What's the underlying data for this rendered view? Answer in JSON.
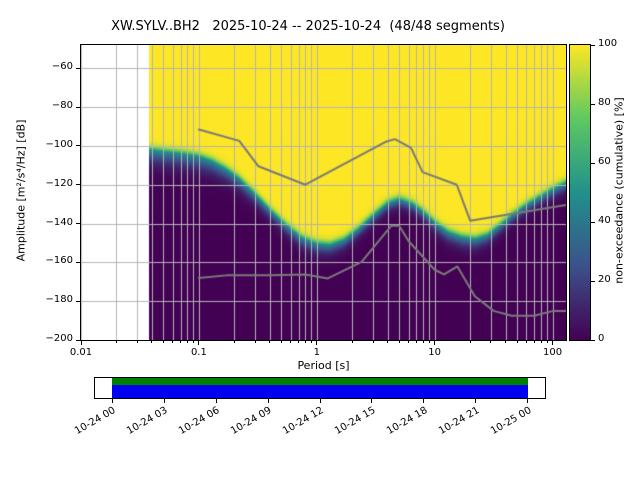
{
  "chart_data": {
    "type": "heatmap",
    "title": "XW.SYLV..BH2   2025-10-24 -- 2025-10-24  (48/48 segments)",
    "xlabel": "Period [s]",
    "ylabel": "Amplitude [m²/s⁴/Hz] [dB]",
    "colorbar_label": "non-exceedance (cumulative) [%]",
    "x_scale": "log",
    "xlim": [
      0.01,
      130
    ],
    "ylim": [
      -200,
      -48
    ],
    "x_ticks": [
      0.01,
      0.1,
      1,
      10,
      100
    ],
    "x_tick_labels": [
      "0.01",
      "0.1",
      "1",
      "10",
      "100"
    ],
    "y_ticks": [
      -60,
      -80,
      -100,
      -120,
      -140,
      -160,
      -180,
      -200
    ],
    "y_tick_labels": [
      "−60",
      "−80",
      "−100",
      "−120",
      "−140",
      "−160",
      "−180",
      "−200"
    ],
    "colorbar_ticks": [
      0,
      20,
      40,
      60,
      80,
      100
    ],
    "colorbar_tick_labels": [
      "0",
      "20",
      "40",
      "60",
      "80",
      "100"
    ],
    "colormap": "viridis",
    "colormap_stops": [
      "#440154",
      "#3b528b",
      "#21918c",
      "#5ec962",
      "#fde725"
    ],
    "grid": true,
    "grid_color": "#b4b4b4",
    "period_range": [
      0.038,
      130
    ],
    "cumulative_boundary": {
      "periods": [
        0.038,
        0.05,
        0.07,
        0.1,
        0.13,
        0.17,
        0.22,
        0.3,
        0.4,
        0.55,
        0.75,
        1.0,
        1.3,
        1.7,
        2.2,
        3.0,
        4.0,
        5.0,
        6.5,
        8.0,
        10,
        13,
        17,
        22,
        28,
        35,
        45,
        60,
        80,
        100,
        130
      ],
      "db": [
        -102,
        -103,
        -104,
        -105.5,
        -108,
        -112,
        -117,
        -125,
        -133,
        -141,
        -147.5,
        -150.5,
        -151,
        -148.5,
        -143.5,
        -136,
        -129.5,
        -127.5,
        -130,
        -134,
        -139.5,
        -144.5,
        -147,
        -148,
        -146,
        -141.5,
        -136,
        -130.5,
        -126,
        -122.5,
        -119
      ],
      "spread_db": [
        3.5,
        3.5,
        3.5,
        3.5,
        3.2,
        3.0,
        2.8,
        2.5,
        2.2,
        2.2,
        2.5,
        2.5,
        2.4,
        2.2,
        2.0,
        2.0,
        2.0,
        2.0,
        2.0,
        2.0,
        2.3,
        2.5,
        2.5,
        2.5,
        2.3,
        2.0,
        2.0,
        2.0,
        2.0,
        2.2,
        2.2
      ],
      "upper_sharpness_db": 1.2
    },
    "noise_models": {
      "color": "#7a7a7a",
      "nhnm": {
        "periods": [
          0.1,
          0.22,
          0.32,
          0.8,
          3.8,
          4.6,
          6.3,
          7.9,
          15.4,
          20,
          130
        ],
        "db": [
          -91.5,
          -97.4,
          -110.5,
          -120.0,
          -98.0,
          -96.5,
          -101.0,
          -113.5,
          -120.0,
          -138.5,
          -130.4
        ]
      },
      "nlnm": {
        "periods": [
          0.1,
          0.17,
          0.4,
          0.8,
          1.24,
          2.4,
          4.3,
          5.0,
          6.0,
          10.0,
          12.0,
          15.6,
          21.9,
          31.6,
          45.0,
          70.0,
          101.0,
          130.0
        ],
        "db": [
          -168.0,
          -166.7,
          -166.7,
          -166.2,
          -168.3,
          -159.7,
          -141.1,
          -141.1,
          -149.0,
          -163.8,
          -166.2,
          -162.1,
          -177.5,
          -185.0,
          -187.5,
          -187.5,
          -185.0,
          -185.0
        ]
      }
    },
    "timeline": {
      "tick_hours": [
        0,
        3,
        6,
        9,
        12,
        15,
        18,
        21,
        24
      ],
      "tick_labels": [
        "10-24 00",
        "10-24 03",
        "10-24 06",
        "10-24 09",
        "10-24 12",
        "10-24 15",
        "10-24 18",
        "10-24 21",
        "10-25 00"
      ],
      "axis_hours": [
        -1,
        25
      ],
      "coverage_hours": [
        0,
        24
      ],
      "covered_color": "#008000",
      "span_color": "#0000ee"
    }
  }
}
